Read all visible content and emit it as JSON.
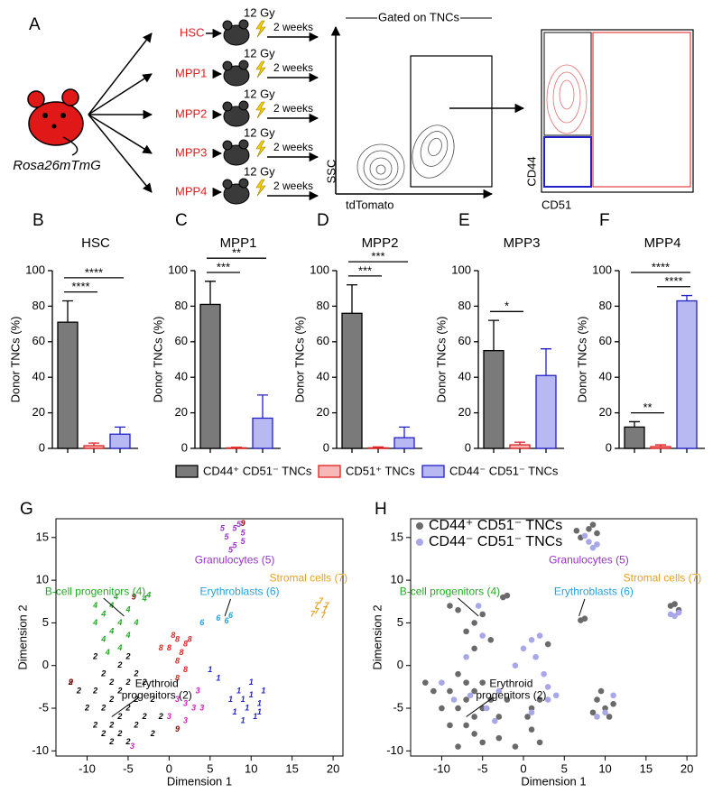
{
  "panel_a": {
    "panel": "A",
    "mouse_label": "Rosa26mTmG",
    "populations": [
      "HSC",
      "MPP1",
      "MPP2",
      "MPP3",
      "MPP4"
    ],
    "dose": "12 Gy",
    "time": "2 weeks",
    "gate_title": "Gated on TNCs",
    "flow1": {
      "xlabel": "tdTomato",
      "ylabel": "SSC"
    },
    "flow2": {
      "xlabel": "CD51",
      "ylabel": "CD44"
    }
  },
  "legend": [
    {
      "name": "CD44⁺ CD51⁻ TNCs",
      "color": "#7a7a7a",
      "edge": "#000000"
    },
    {
      "name": "CD51⁺ TNCs",
      "color": "#f7b8b8",
      "edge": "#e02020"
    },
    {
      "name": "CD44⁻ CD51⁻ TNCs",
      "color": "#b8b8f2",
      "edge": "#2020c8"
    }
  ],
  "chart_data": [
    {
      "type": "bar",
      "panel": "B",
      "title": "HSC",
      "ylabel": "Donor TNCs (%)",
      "ylim": [
        0,
        100
      ],
      "yticks": [
        0,
        20,
        40,
        60,
        80,
        100
      ],
      "values": [
        71,
        1.5,
        8
      ],
      "errors": [
        12,
        1.5,
        4
      ],
      "brackets": [
        {
          "from": 0,
          "to": 1,
          "label": "****"
        },
        {
          "from": 0,
          "to": 2,
          "label": "****"
        }
      ]
    },
    {
      "type": "bar",
      "panel": "C",
      "title": "MPP1",
      "ylabel": "Donor TNCs (%)",
      "ylim": [
        0,
        100
      ],
      "yticks": [
        0,
        20,
        40,
        60,
        80,
        100
      ],
      "values": [
        81,
        0.3,
        17
      ],
      "errors": [
        13,
        0.3,
        13
      ],
      "brackets": [
        {
          "from": 0,
          "to": 1,
          "label": "***"
        },
        {
          "from": 0,
          "to": 2,
          "label": "**"
        }
      ]
    },
    {
      "type": "bar",
      "panel": "D",
      "title": "MPP2",
      "ylabel": "Donor TNCs (%)",
      "ylim": [
        0,
        100
      ],
      "yticks": [
        0,
        20,
        40,
        60,
        80,
        100
      ],
      "values": [
        76,
        0.3,
        6
      ],
      "errors": [
        16,
        0.5,
        6
      ],
      "brackets": [
        {
          "from": 0,
          "to": 1,
          "label": "***"
        },
        {
          "from": 0,
          "to": 2,
          "label": "***"
        }
      ]
    },
    {
      "type": "bar",
      "panel": "E",
      "title": "MPP3",
      "ylabel": "Donor TNCs (%)",
      "ylim": [
        0,
        100
      ],
      "yticks": [
        0,
        20,
        40,
        60,
        80,
        100
      ],
      "values": [
        55,
        2,
        41
      ],
      "errors": [
        17,
        1.5,
        15
      ],
      "brackets": [
        {
          "from": 0,
          "to": 1,
          "label": "*"
        }
      ]
    },
    {
      "type": "bar",
      "panel": "F",
      "title": "MPP4",
      "ylabel": "Donor TNCs (%)",
      "ylim": [
        0,
        100
      ],
      "yticks": [
        0,
        20,
        40,
        60,
        80,
        100
      ],
      "values": [
        12,
        1,
        83
      ],
      "errors": [
        3,
        1,
        3
      ],
      "brackets": [
        {
          "from": 0,
          "to": 1,
          "label": "**"
        },
        {
          "from": 1,
          "to": 2,
          "label": "****"
        },
        {
          "from": 0,
          "to": 2,
          "label": "****"
        }
      ]
    },
    {
      "type": "scatter",
      "panel": "G",
      "xlabel": "Dimension 1",
      "ylabel": "Dimension 2",
      "xlim": [
        -13.8,
        21.2
      ],
      "ylim": [
        -10.6,
        17.2
      ],
      "xticks": [
        -10,
        -5,
        0,
        5,
        10,
        15,
        20
      ],
      "yticks": [
        -10,
        -5,
        0,
        5,
        10,
        15
      ],
      "annotations": [
        {
          "lines": [
            "Granulocytes (5)"
          ],
          "color": "#9932cc"
        },
        {
          "lines": [
            "B-cell progenitors (4)"
          ],
          "color": "#22aa22"
        },
        {
          "lines": [
            "Erythroblasts (6)"
          ],
          "color": "#2aa0e0"
        },
        {
          "lines": [
            "Stromal cells (7)"
          ],
          "color": "#e8a020"
        },
        {
          "lines": [
            "Erythroid",
            "progenitors (2)"
          ],
          "color": "#000000"
        }
      ],
      "series": [
        {
          "marker": "1",
          "color": "#2222cc",
          "x": [
            8.5,
            9,
            10,
            11,
            9.5,
            10.5,
            8,
            11.5,
            9,
            10,
            7.5,
            11,
            6,
            5
          ],
          "y": [
            -3,
            -4,
            -3.5,
            -4.5,
            -5,
            -6,
            -5.5,
            -3,
            -6.5,
            -2,
            -4,
            -5.5,
            -1.5,
            -0.5
          ]
        },
        {
          "marker": "2",
          "color": "#000000",
          "x": [
            -7,
            -6,
            -5,
            -8,
            -6,
            -4,
            -9,
            -7,
            -5,
            -3,
            -8,
            -6,
            -4,
            -10,
            -2,
            -7,
            -5,
            -9,
            -3,
            -6,
            -8,
            -1,
            -11,
            -12,
            -4,
            -2,
            -7,
            -5,
            -9
          ],
          "y": [
            -4,
            -3,
            -5,
            -5,
            -6,
            -4,
            -3,
            -7,
            -2,
            -6,
            -1,
            -8,
            -7,
            -5,
            -4,
            -2,
            -9,
            -7,
            -2,
            0,
            -8,
            -6,
            -3,
            -2,
            -1,
            -8,
            -9,
            1,
            1
          ]
        },
        {
          "marker": "3",
          "color": "#d020c0",
          "x": [
            2,
            3,
            4,
            2,
            1,
            0,
            -4.5,
            3.5
          ],
          "y": [
            -4.5,
            -5,
            -5,
            -6.5,
            -4,
            -6,
            -9.5,
            -3
          ]
        },
        {
          "marker": "4",
          "color": "#22aa22",
          "x": [
            -8,
            -7,
            -6,
            -9,
            -7,
            -5,
            -8,
            -6,
            -4,
            -9,
            -7.5,
            -5,
            -3,
            -2.5,
            -6.5
          ],
          "y": [
            6,
            7,
            5,
            5,
            4,
            6.5,
            3,
            2,
            5,
            7,
            1.5,
            3.5,
            7.8,
            8.2,
            8
          ]
        },
        {
          "marker": "5",
          "color": "#9932cc",
          "x": [
            7,
            8,
            9,
            8,
            7.5,
            9,
            6.5,
            8.5
          ],
          "y": [
            15,
            16,
            15.5,
            14,
            13.5,
            14.5,
            16,
            16.5
          ]
        },
        {
          "marker": "6",
          "color": "#2aa0e0",
          "x": [
            6,
            7,
            7.5,
            4
          ],
          "y": [
            5.5,
            5.2,
            5.8,
            5
          ]
        },
        {
          "marker": "7",
          "color": "#e8a020",
          "x": [
            18,
            19,
            18.5,
            17.5,
            19.2,
            18,
            18.8
          ],
          "y": [
            7,
            6.5,
            7.5,
            6,
            7,
            6.3,
            5.8
          ]
        },
        {
          "marker": "8",
          "color": "#e02020",
          "x": [
            0,
            1,
            2,
            1.5,
            0.5,
            2.5,
            -1,
            1,
            2,
            1
          ],
          "y": [
            2,
            3,
            2.5,
            1.5,
            3.5,
            3,
            2,
            0.5,
            -0.5,
            -1.5
          ]
        },
        {
          "marker": "9",
          "color": "#8b0000",
          "x": [
            9,
            -4.3,
            -12,
            1
          ],
          "y": [
            16.6,
            8,
            -2,
            -7.5
          ]
        }
      ]
    },
    {
      "type": "scatter",
      "panel": "H",
      "xlabel": "Dimension 1",
      "ylabel": "Dimension 2",
      "xlim": [
        -13.8,
        21.2
      ],
      "ylim": [
        -10.6,
        17.2
      ],
      "xticks": [
        -10,
        -5,
        0,
        5,
        10,
        15,
        20
      ],
      "yticks": [
        -10,
        -5,
        0,
        5,
        10,
        15
      ],
      "annotations": [
        {
          "lines": [
            "Granulocytes (5)"
          ],
          "color": "#9932cc"
        },
        {
          "lines": [
            "B-cell progenitors (4)"
          ],
          "color": "#22aa22"
        },
        {
          "lines": [
            "Erythroblasts (6)"
          ],
          "color": "#2aa0e0"
        },
        {
          "lines": [
            "Stromal cells (7)"
          ],
          "color": "#e8a020"
        },
        {
          "lines": [
            "Erythroid",
            "progenitors (2)"
          ],
          "color": "#000000"
        }
      ],
      "series": [
        {
          "name": "CD44⁺ CD51⁻ TNCs",
          "color": "#6a6a6a",
          "x": [
            -7,
            -6,
            -5,
            -8,
            -6,
            -4,
            -9,
            -7,
            -5,
            -3,
            -8,
            -6,
            -10,
            -2,
            -7,
            -9,
            -11,
            -12,
            -6,
            -5,
            -8,
            -7,
            -6,
            -9,
            -4,
            -2.5,
            -2,
            1,
            2,
            0.5,
            3,
            9,
            10,
            11,
            9.5,
            8.5,
            10.5,
            7,
            8,
            9,
            8.5,
            6.5,
            18,
            19,
            18.5,
            7,
            7.5,
            1,
            -1,
            2,
            -3,
            -5,
            -8
          ],
          "y": [
            -4,
            -3,
            -5,
            -5,
            -6,
            -4,
            -3,
            -7,
            -2,
            -6,
            -1,
            -8,
            -5,
            -4,
            -2,
            -7,
            -3,
            -2,
            5,
            6,
            6.5,
            4,
            2,
            7,
            3,
            8,
            8.2,
            -5,
            -4,
            -6,
            2.5,
            -4,
            -5,
            -4.5,
            -3,
            -5.5,
            -6,
            15,
            16,
            15.5,
            16.5,
            15.8,
            7,
            6.5,
            7.2,
            5.3,
            5.5,
            -7.5,
            -9.5,
            -9,
            -8.5,
            -9,
            -9.5
          ]
        },
        {
          "name": "CD44⁻ CD51⁻ TNCs",
          "color": "#a8a8e8",
          "x": [
            -6.5,
            -4.5,
            -8.5,
            -3,
            -5.5,
            -1,
            0,
            1,
            1.5,
            2,
            2.5,
            3,
            4,
            9,
            10,
            11,
            8,
            7.5,
            8.5,
            9,
            18,
            19,
            18.5,
            -7,
            -5,
            -10,
            -3.5,
            1,
            3
          ],
          "y": [
            -3.5,
            -5,
            -4,
            -3,
            7,
            0,
            2,
            3,
            1,
            3.5,
            -1,
            -2.5,
            -3.5,
            -6,
            -5.5,
            -3.5,
            14.5,
            15.2,
            13.8,
            14.2,
            6,
            6.2,
            5.8,
            1,
            3.5,
            -2,
            -6.5,
            -5.5,
            -4
          ]
        }
      ]
    }
  ]
}
